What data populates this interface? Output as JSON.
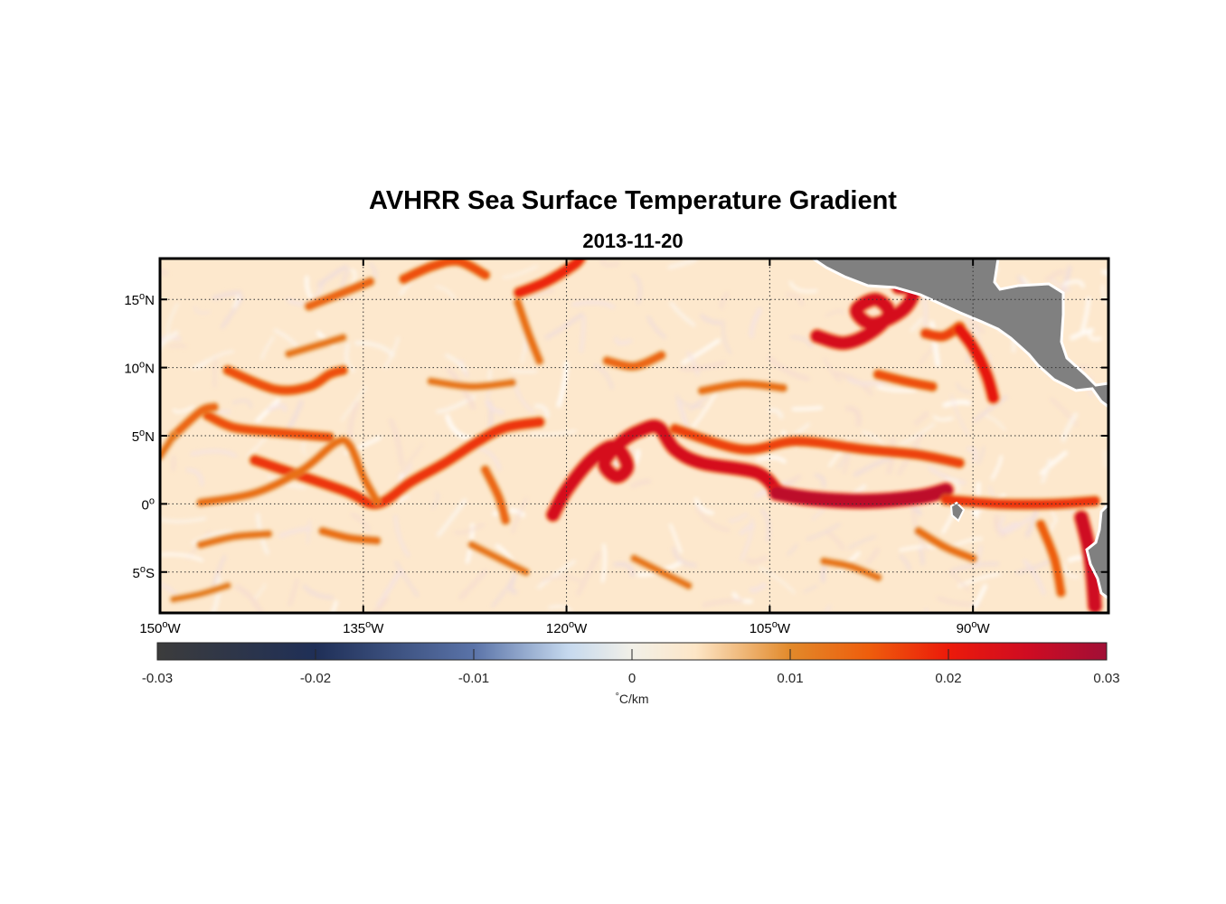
{
  "title": "AVHRR Sea Surface Temperature Gradient",
  "subtitle": "2013-11-20",
  "map": {
    "lon_range": [
      -150,
      -80
    ],
    "lat_range": [
      -8,
      18
    ],
    "land_color": "#808080",
    "grid_style": "dotted",
    "lat_ticks": [
      {
        "value": 15,
        "label": "15",
        "suffix": "N"
      },
      {
        "value": 10,
        "label": "10",
        "suffix": "N"
      },
      {
        "value": 5,
        "label": "5",
        "suffix": "N"
      },
      {
        "value": 0,
        "label": "0",
        "suffix": ""
      },
      {
        "value": -5,
        "label": "5",
        "suffix": "S"
      }
    ],
    "lon_ticks": [
      {
        "value": -150,
        "label": "150",
        "suffix": "W"
      },
      {
        "value": -135,
        "label": "135",
        "suffix": "W"
      },
      {
        "value": -120,
        "label": "120",
        "suffix": "W"
      },
      {
        "value": -105,
        "label": "105",
        "suffix": "W"
      },
      {
        "value": -90,
        "label": "90",
        "suffix": "W"
      }
    ],
    "fronts": [
      {
        "intensity": 0.018,
        "points": [
          [
            -143,
            3.2
          ],
          [
            -136.5,
            1
          ],
          [
            -134,
            0
          ],
          [
            -131.5,
            1.6
          ],
          [
            -129,
            3
          ],
          [
            -126.5,
            4.6
          ],
          [
            -124.5,
            5.6
          ],
          [
            -122,
            6
          ]
        ]
      },
      {
        "intensity": 0.013,
        "points": [
          [
            -147,
            0.1
          ],
          [
            -143,
            0.8
          ],
          [
            -139.5,
            2.5
          ],
          [
            -137,
            4.5
          ],
          [
            -136,
            4.3
          ],
          [
            -135,
            2
          ],
          [
            -134,
            0.2
          ]
        ]
      },
      {
        "intensity": 0.016,
        "points": [
          [
            -146.5,
            6.5
          ],
          [
            -144.5,
            5.6
          ],
          [
            -141,
            5.2
          ],
          [
            -137.5,
            4.9
          ]
        ]
      },
      {
        "intensity": 0.014,
        "points": [
          [
            -149,
            5
          ],
          [
            -147,
            6.8
          ],
          [
            -146,
            7.1
          ]
        ]
      },
      {
        "intensity": 0.016,
        "points": [
          [
            -145,
            9.8
          ],
          [
            -141.5,
            8.4
          ],
          [
            -139,
            8.6
          ],
          [
            -137.5,
            9.5
          ],
          [
            -136.5,
            9.8
          ]
        ]
      },
      {
        "intensity": 0.012,
        "points": [
          [
            -150,
            3.5
          ],
          [
            -149,
            5
          ]
        ]
      },
      {
        "intensity": 0.024,
        "points": [
          [
            -121,
            -0.8
          ],
          [
            -120,
            1
          ],
          [
            -118.2,
            3.2
          ],
          [
            -116.5,
            4.2
          ],
          [
            -115.5,
            2.8
          ],
          [
            -116.3,
            2
          ],
          [
            -117.2,
            3
          ],
          [
            -116,
            4.5
          ],
          [
            -114.5,
            5.4
          ],
          [
            -113.2,
            5.6
          ],
          [
            -112,
            4
          ],
          [
            -110,
            3
          ],
          [
            -106,
            2.3
          ],
          [
            -104.5,
            1
          ]
        ]
      },
      {
        "intensity": 0.027,
        "points": [
          [
            -104.5,
            0.8
          ],
          [
            -102,
            0.4
          ],
          [
            -98,
            0.2
          ],
          [
            -94,
            0.5
          ],
          [
            -92,
            1
          ]
        ]
      },
      {
        "intensity": 0.017,
        "points": [
          [
            -112,
            5.5
          ],
          [
            -107,
            4
          ],
          [
            -103,
            4.6
          ],
          [
            -98,
            4
          ],
          [
            -94,
            3.6
          ],
          [
            -91,
            3
          ]
        ]
      },
      {
        "intensity": 0.018,
        "points": [
          [
            -92,
            0.3
          ],
          [
            -88,
            0
          ],
          [
            -84,
            0
          ],
          [
            -81,
            0.2
          ]
        ]
      },
      {
        "intensity": 0.025,
        "points": [
          [
            -82,
            -1
          ],
          [
            -81.5,
            -3
          ],
          [
            -81.2,
            -5
          ],
          [
            -81,
            -7.5
          ]
        ]
      },
      {
        "intensity": 0.015,
        "points": [
          [
            -85,
            -1.5
          ],
          [
            -84,
            -4
          ],
          [
            -83.5,
            -6.5
          ]
        ]
      },
      {
        "intensity": 0.024,
        "points": [
          [
            -101.5,
            12.3
          ],
          [
            -99.5,
            11.8
          ],
          [
            -97.5,
            12.6
          ],
          [
            -96.2,
            14
          ],
          [
            -97.2,
            15
          ],
          [
            -98.6,
            14.2
          ],
          [
            -97.4,
            13.2
          ],
          [
            -95.2,
            14.2
          ],
          [
            -94.4,
            15.6
          ],
          [
            -95.5,
            15.9
          ]
        ]
      },
      {
        "intensity": 0.017,
        "points": [
          [
            -93.5,
            12.5
          ],
          [
            -92.2,
            12.3
          ],
          [
            -91,
            13
          ]
        ]
      },
      {
        "intensity": 0.021,
        "points": [
          [
            -91,
            12.8
          ],
          [
            -90,
            11.5
          ],
          [
            -89,
            9.5
          ],
          [
            -88.5,
            7.8
          ]
        ]
      },
      {
        "intensity": 0.016,
        "points": [
          [
            -97,
            9.5
          ],
          [
            -95,
            9
          ],
          [
            -93,
            8.6
          ]
        ]
      },
      {
        "intensity": 0.019,
        "points": [
          [
            -123.5,
            15.5
          ],
          [
            -121.5,
            16.3
          ],
          [
            -119.5,
            17.5
          ],
          [
            -119,
            18
          ]
        ]
      },
      {
        "intensity": 0.016,
        "points": [
          [
            -132,
            16.5
          ],
          [
            -130,
            17.4
          ],
          [
            -128,
            17.8
          ],
          [
            -126,
            16.8
          ]
        ]
      },
      {
        "intensity": 0.014,
        "points": [
          [
            -139,
            14.5
          ],
          [
            -136.5,
            15.5
          ],
          [
            -134.5,
            16.3
          ]
        ]
      },
      {
        "intensity": 0.013,
        "points": [
          [
            -122,
            10.5
          ],
          [
            -122.8,
            12.5
          ],
          [
            -123.6,
            14.8
          ]
        ]
      },
      {
        "intensity": 0.012,
        "points": [
          [
            -140.5,
            11
          ],
          [
            -138.5,
            11.6
          ],
          [
            -136.5,
            12.2
          ]
        ]
      },
      {
        "intensity": 0.014,
        "points": [
          [
            -117,
            10.5
          ],
          [
            -115,
            10.1
          ],
          [
            -113,
            10.9
          ]
        ]
      },
      {
        "intensity": 0.012,
        "points": [
          [
            -147,
            -3
          ],
          [
            -144.5,
            -2.4
          ],
          [
            -142,
            -2.2
          ]
        ]
      },
      {
        "intensity": 0.013,
        "points": [
          [
            -138,
            -2
          ],
          [
            -136,
            -2.5
          ],
          [
            -134,
            -2.7
          ]
        ]
      },
      {
        "intensity": 0.012,
        "points": [
          [
            -127,
            -3
          ],
          [
            -125,
            -4
          ],
          [
            -123,
            -5
          ]
        ]
      },
      {
        "intensity": 0.012,
        "points": [
          [
            -115,
            -4
          ],
          [
            -113,
            -5
          ],
          [
            -111,
            -6
          ]
        ]
      },
      {
        "intensity": 0.011,
        "points": [
          [
            -149,
            -7
          ],
          [
            -147,
            -6.6
          ],
          [
            -145,
            -6
          ]
        ]
      },
      {
        "intensity": 0.012,
        "points": [
          [
            -101,
            -4.2
          ],
          [
            -99,
            -4.6
          ],
          [
            -97,
            -5.4
          ]
        ]
      },
      {
        "intensity": 0.013,
        "points": [
          [
            -94,
            -2
          ],
          [
            -92,
            -3.2
          ],
          [
            -90,
            -4
          ]
        ]
      },
      {
        "intensity": 0.014,
        "points": [
          [
            -126,
            2.5
          ],
          [
            -125,
            0.5
          ],
          [
            -124.5,
            -1.2
          ]
        ]
      },
      {
        "intensity": 0.013,
        "points": [
          [
            -110,
            8.3
          ],
          [
            -107,
            8.8
          ],
          [
            -104,
            8.5
          ]
        ]
      },
      {
        "intensity": 0.012,
        "points": [
          [
            -130,
            9
          ],
          [
            -127,
            8.6
          ],
          [
            -124,
            8.9
          ]
        ]
      }
    ]
  },
  "colorbar": {
    "range": [
      -0.03,
      0.03
    ],
    "ticks": [
      {
        "value": -0.03,
        "label": "-0.03"
      },
      {
        "value": -0.02,
        "label": "-0.02"
      },
      {
        "value": -0.01,
        "label": "-0.01"
      },
      {
        "value": 0,
        "label": "0"
      },
      {
        "value": 0.01,
        "label": "0.01"
      },
      {
        "value": 0.02,
        "label": "0.02"
      },
      {
        "value": 0.03,
        "label": "0.03"
      }
    ],
    "unit_symbol": "°",
    "unit_text": "C/km",
    "stops": [
      {
        "value": -0.03,
        "color": "#3c3c3c"
      },
      {
        "value": -0.02,
        "color": "#1f2f57"
      },
      {
        "value": -0.01,
        "color": "#5a73a8"
      },
      {
        "value": -0.004,
        "color": "#c6d9ee"
      },
      {
        "value": 0,
        "color": "#f2f0e8"
      },
      {
        "value": 0.004,
        "color": "#fde6c7"
      },
      {
        "value": 0.01,
        "color": "#e2892a"
      },
      {
        "value": 0.015,
        "color": "#ee5d0c"
      },
      {
        "value": 0.02,
        "color": "#ec1a0a"
      },
      {
        "value": 0.025,
        "color": "#cf0c22"
      },
      {
        "value": 0.03,
        "color": "#a10f36"
      }
    ]
  }
}
